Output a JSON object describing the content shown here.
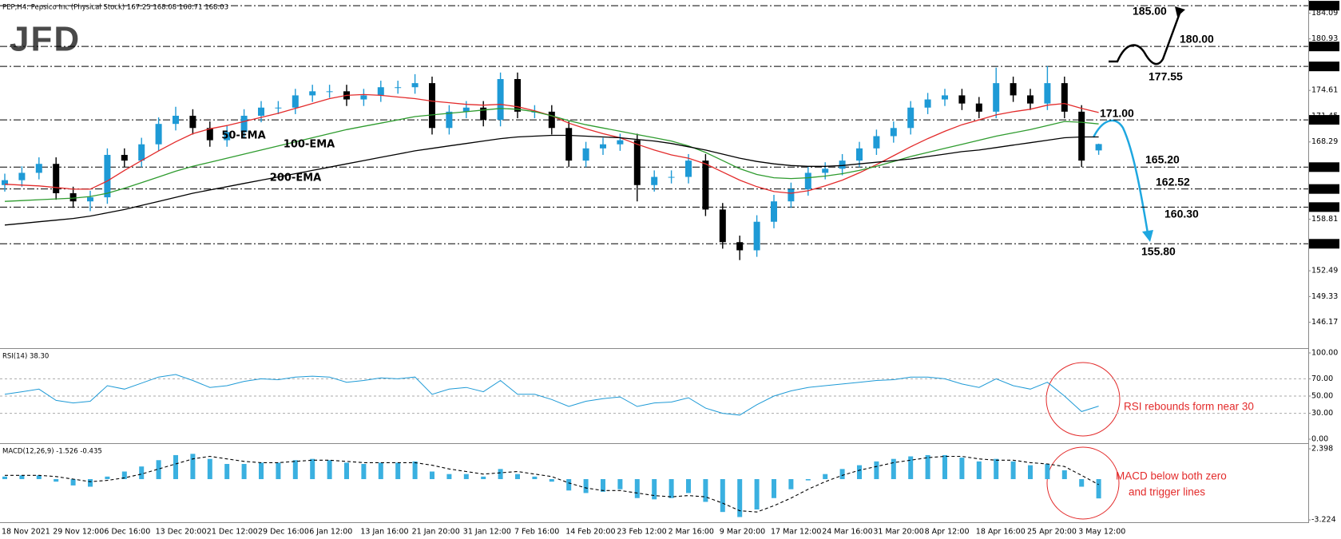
{
  "chart_data": [
    {
      "type": "candlestick",
      "title": "PEP,H4: Pepsico Inc (Physical Stock) 167.25 168.08 166.71 168.03",
      "logo": "JFD",
      "categories": [
        "18 Nov 2021",
        null,
        null,
        "29 Nov 12:00",
        null,
        null,
        "6 Dec 16:00",
        null,
        null,
        "13 Dec 20:00",
        null,
        null,
        "21 Dec 12:00",
        null,
        null,
        "29 Dec 16:00",
        null,
        null,
        "6 Jan 12:00",
        null,
        null,
        "13 Jan 16:00",
        null,
        null,
        "21 Jan 20:00",
        null,
        null,
        "31 Jan 12:00",
        null,
        null,
        "7 Feb 16:00",
        null,
        null,
        "14 Feb 20:00",
        null,
        null,
        "23 Feb 12:00",
        null,
        null,
        "2 Mar 16:00",
        null,
        null,
        "9 Mar 20:00",
        null,
        null,
        "17 Mar 12:00",
        null,
        null,
        "24 Mar 16:00",
        null,
        null,
        "31 Mar 20:00",
        null,
        null,
        "8 Apr 12:00",
        null,
        null,
        "18 Apr 16:00",
        null,
        null,
        "25 Apr 20:00",
        null,
        null,
        "3 May 12:00",
        null
      ],
      "open": [
        163.0,
        163.6,
        164.5,
        165.6,
        162.0,
        161.0,
        161.5,
        166.7,
        166.0,
        168.0,
        170.5,
        171.5,
        170.0,
        168.5,
        169.5,
        171.5,
        172.5,
        172.5,
        174.0,
        174.5,
        174.5,
        173.5,
        174.0,
        175.0,
        175.0,
        175.5,
        170.0,
        172.0,
        172.5,
        171.0,
        176.0,
        172.0,
        172.0,
        170.0,
        166.0,
        167.5,
        168.0,
        168.5,
        163.0,
        164.0,
        164.0,
        166.0,
        160.0,
        156.0,
        155.0,
        158.5,
        161.0,
        162.5,
        164.5,
        165.0,
        166.0,
        167.5,
        169.0,
        170.0,
        172.5,
        173.5,
        174.0,
        173.0,
        172.0,
        175.5,
        174.0,
        173.0,
        175.5,
        172.0,
        167.25
      ],
      "high": [
        164.4,
        165.3,
        166.4,
        166.4,
        162.8,
        162.3,
        167.5,
        167.5,
        168.8,
        171.3,
        172.6,
        172.3,
        170.8,
        170.3,
        172.3,
        173.3,
        173.3,
        174.8,
        175.3,
        175.3,
        175.3,
        174.8,
        175.8,
        175.8,
        176.6,
        176.3,
        172.8,
        173.3,
        173.3,
        176.8,
        176.8,
        172.8,
        172.8,
        170.8,
        168.3,
        168.8,
        169.3,
        169.3,
        164.8,
        164.8,
        166.8,
        166.8,
        160.8,
        156.8,
        159.3,
        161.8,
        163.3,
        165.3,
        165.8,
        166.8,
        168.3,
        169.8,
        170.8,
        173.3,
        174.3,
        174.8,
        174.8,
        173.8,
        177.4,
        176.3,
        174.8,
        177.6,
        176.3,
        172.8,
        168.08
      ],
      "low": [
        162.2,
        162.8,
        163.7,
        161.2,
        160.2,
        159.8,
        160.7,
        165.2,
        165.2,
        167.2,
        169.7,
        169.2,
        167.7,
        167.7,
        168.7,
        170.7,
        171.7,
        171.7,
        173.2,
        173.7,
        172.7,
        172.7,
        173.2,
        174.2,
        174.2,
        169.2,
        169.2,
        171.2,
        170.2,
        170.2,
        171.2,
        171.2,
        169.2,
        165.2,
        165.2,
        166.7,
        167.2,
        161.0,
        162.2,
        163.2,
        163.2,
        159.2,
        155.2,
        153.8,
        154.2,
        157.7,
        160.2,
        161.7,
        163.7,
        164.2,
        165.2,
        166.7,
        168.2,
        169.2,
        171.7,
        172.7,
        172.2,
        171.2,
        171.2,
        173.2,
        172.2,
        172.2,
        171.2,
        165.2,
        166.71
      ],
      "close": [
        163.6,
        164.5,
        165.6,
        162.0,
        161.0,
        161.5,
        166.7,
        166.0,
        168.0,
        170.5,
        171.5,
        170.0,
        168.5,
        169.5,
        171.5,
        172.5,
        172.5,
        174.0,
        174.5,
        174.5,
        173.5,
        174.0,
        175.0,
        175.0,
        175.5,
        170.0,
        172.0,
        172.5,
        171.0,
        176.0,
        172.0,
        172.0,
        170.0,
        166.0,
        167.5,
        168.0,
        168.5,
        163.0,
        164.0,
        164.0,
        166.0,
        160.0,
        156.0,
        155.0,
        158.5,
        161.0,
        162.5,
        164.5,
        165.0,
        166.0,
        167.5,
        169.0,
        170.0,
        172.5,
        173.5,
        174.0,
        173.0,
        172.0,
        175.5,
        174.0,
        173.0,
        175.5,
        172.0,
        166.0,
        168.03
      ],
      "up_color": "#1e9ad6",
      "down_color": "#000000",
      "series": [
        {
          "name": "50-EMA",
          "color": "#e32b2b",
          "values": [
            163.1,
            163.0,
            162.9,
            162.7,
            162.5,
            162.5,
            163.5,
            164.8,
            166.0,
            167.2,
            168.3,
            169.3,
            169.9,
            170.3,
            170.8,
            171.3,
            171.8,
            172.4,
            173.0,
            173.6,
            174.0,
            174.1,
            174.0,
            173.8,
            173.6,
            173.3,
            173.1,
            172.9,
            172.8,
            172.9,
            172.6,
            172.1,
            171.5,
            170.6,
            169.9,
            169.3,
            168.8,
            168.0,
            167.3,
            166.7,
            166.3,
            165.6,
            164.6,
            163.6,
            162.8,
            162.2,
            162.0,
            162.3,
            162.9,
            163.6,
            164.5,
            165.5,
            166.6,
            167.7,
            168.7,
            169.6,
            170.4,
            171.0,
            171.6,
            172.0,
            172.3,
            172.8,
            173.0,
            172.4,
            171.9
          ]
        },
        {
          "name": "100-EMA",
          "color": "#2e9b2e",
          "values": [
            161.0,
            161.1,
            161.2,
            161.3,
            161.4,
            161.6,
            162.0,
            162.6,
            163.3,
            164.0,
            164.7,
            165.3,
            165.8,
            166.3,
            166.8,
            167.3,
            167.8,
            168.3,
            168.8,
            169.3,
            169.8,
            170.2,
            170.6,
            171.0,
            171.4,
            171.6,
            171.8,
            172.0,
            172.2,
            172.4,
            172.3,
            172.0,
            171.5,
            170.9,
            170.4,
            170.0,
            169.6,
            169.2,
            168.8,
            168.4,
            167.8,
            167.0,
            166.0,
            165.0,
            164.3,
            163.9,
            163.8,
            163.9,
            164.1,
            164.4,
            164.8,
            165.3,
            165.9,
            166.5,
            167.0,
            167.5,
            168.0,
            168.5,
            169.0,
            169.4,
            169.8,
            170.3,
            170.8,
            170.7,
            170.5
          ]
        },
        {
          "name": "200-EMA",
          "color": "#000000",
          "values": [
            158.1,
            158.3,
            158.5,
            158.7,
            158.9,
            159.2,
            159.6,
            160.0,
            160.5,
            161.0,
            161.5,
            162.0,
            162.4,
            162.8,
            163.2,
            163.6,
            164.0,
            164.4,
            164.8,
            165.2,
            165.6,
            166.0,
            166.4,
            166.8,
            167.2,
            167.5,
            167.8,
            168.1,
            168.4,
            168.7,
            168.9,
            169.0,
            169.1,
            169.1,
            169.0,
            168.9,
            168.8,
            168.6,
            168.4,
            168.1,
            167.7,
            167.3,
            166.8,
            166.3,
            165.9,
            165.6,
            165.4,
            165.3,
            165.3,
            165.4,
            165.6,
            165.8,
            166.0,
            166.2,
            166.5,
            166.8,
            167.1,
            167.3,
            167.6,
            167.9,
            168.2,
            168.5,
            168.8,
            168.9,
            168.9
          ]
        }
      ],
      "levels": [
        {
          "value": 185,
          "label": "185.00",
          "annotation_color": "#000000"
        },
        {
          "value": 180,
          "label": "180.00",
          "annotation_color": "#000000"
        },
        {
          "value": 177.55,
          "label": "177.55",
          "annotation_color": "#000000"
        },
        {
          "value": 171,
          "label": "171.00",
          "annotation_color": "#1ea7e0"
        },
        {
          "value": 165.2,
          "label": "165.20",
          "annotation_color": "#1ea7e0"
        },
        {
          "value": 162.52,
          "label": "162.52",
          "annotation_color": "#1ea7e0"
        },
        {
          "value": 160.3,
          "label": "160.30",
          "annotation_color": "#1ea7e0"
        },
        {
          "value": 155.8,
          "label": "155.80",
          "annotation_color": "#1ea7e0"
        }
      ],
      "ylim": [
        143.0,
        185.5
      ],
      "yticks": [
        184.09,
        180.93,
        174.61,
        171.45,
        168.29,
        158.81,
        152.49,
        149.33,
        146.17
      ]
    },
    {
      "type": "line",
      "title": "RSI(14) 38.30",
      "color": "#1e9ad6",
      "values": [
        52,
        55,
        58,
        45,
        42,
        44,
        62,
        58,
        65,
        72,
        75,
        68,
        60,
        62,
        67,
        70,
        69,
        72,
        73,
        72,
        66,
        68,
        71,
        70,
        72,
        52,
        58,
        60,
        55,
        68,
        52,
        52,
        46,
        38,
        44,
        47,
        49,
        38,
        42,
        43,
        48,
        36,
        30,
        28,
        40,
        50,
        56,
        60,
        62,
        64,
        66,
        68,
        69,
        72,
        72,
        70,
        64,
        60,
        70,
        62,
        58,
        66,
        50,
        32,
        38.3
      ],
      "annotation": "RSI rebounds form near 30",
      "ylim": [
        -3.7,
        104.6
      ],
      "yticks": [
        {
          "value": 100,
          "label": "100.00"
        },
        {
          "value": 70,
          "label": "70.00"
        },
        {
          "value": 50,
          "label": "50.00"
        },
        {
          "value": 30,
          "label": "30.00"
        },
        {
          "value": 0,
          "label": "0.00"
        }
      ]
    },
    {
      "type": "macd",
      "title": "MACD(12,26,9) -1.526 -0.435",
      "color": "#3ab0e0",
      "signal_color": "#000000",
      "values": [
        0.2,
        0.3,
        0.3,
        -0.2,
        -0.5,
        -0.6,
        0.2,
        0.6,
        1.0,
        1.5,
        1.9,
        2.0,
        1.6,
        1.2,
        1.2,
        1.3,
        1.3,
        1.5,
        1.6,
        1.5,
        1.3,
        1.2,
        1.3,
        1.3,
        1.4,
        0.6,
        0.4,
        0.4,
        0.2,
        0.8,
        0.4,
        0.2,
        -0.2,
        -0.9,
        -1.1,
        -1.0,
        -0.8,
        -1.5,
        -1.6,
        -1.5,
        -1.1,
        -1.8,
        -2.6,
        -3.0,
        -2.4,
        -1.5,
        -0.8,
        -0.1,
        0.4,
        0.8,
        1.1,
        1.4,
        1.6,
        1.8,
        1.9,
        1.9,
        1.7,
        1.4,
        1.6,
        1.4,
        1.1,
        1.2,
        0.7,
        -0.6,
        -1.526
      ],
      "signal": [
        0.3,
        0.3,
        0.3,
        0.2,
        0.0,
        -0.2,
        -0.1,
        0.1,
        0.4,
        0.8,
        1.2,
        1.6,
        1.8,
        1.6,
        1.4,
        1.3,
        1.3,
        1.4,
        1.5,
        1.5,
        1.4,
        1.3,
        1.3,
        1.3,
        1.3,
        1.1,
        0.8,
        0.6,
        0.4,
        0.5,
        0.6,
        0.4,
        0.2,
        -0.3,
        -0.7,
        -0.9,
        -0.9,
        -1.1,
        -1.3,
        -1.4,
        -1.3,
        -1.4,
        -1.9,
        -2.5,
        -2.6,
        -2.1,
        -1.5,
        -0.8,
        -0.2,
        0.3,
        0.7,
        1.0,
        1.3,
        1.5,
        1.7,
        1.8,
        1.8,
        1.6,
        1.5,
        1.5,
        1.3,
        1.2,
        1.0,
        0.3,
        -0.435
      ],
      "annotations": [
        "MACD below both zero",
        "and trigger lines"
      ],
      "ylim": [
        -3.41,
        2.78
      ],
      "yticks": [
        2.398,
        -3.224
      ]
    }
  ]
}
